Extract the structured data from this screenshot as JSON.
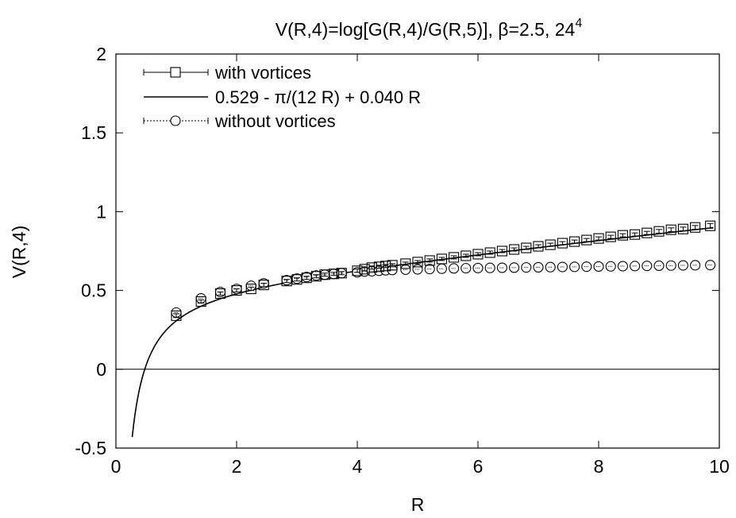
{
  "chart_data": {
    "type": "scatter",
    "title_main": "V(R,4)=log[G(R,4)/G(R,5)], β=2.5, 24",
    "title_sup": "4",
    "xlabel": "R",
    "ylabel": "V(R,4)",
    "xlim": [
      0,
      10
    ],
    "ylim": [
      -0.5,
      2
    ],
    "x_ticks": [
      0,
      2,
      4,
      6,
      8,
      10
    ],
    "x_tick_labels": [
      "0",
      "2",
      "4",
      "6",
      "8",
      "10"
    ],
    "y_ticks": [
      -0.5,
      0,
      0.5,
      1,
      1.5,
      2
    ],
    "y_tick_labels": [
      "-0.5",
      "0",
      "0.5",
      "1",
      "1.5",
      "2"
    ],
    "zero_line": true,
    "legend_position": "top-left",
    "fit": {
      "name": "0.529 - π/(12 R) + 0.040 R",
      "a": 0.529,
      "b": 0.2618,
      "c": 0.04,
      "x_range": [
        0.27,
        9.9
      ]
    },
    "series": [
      {
        "name": "with vortices",
        "marker": "square",
        "line": "solid",
        "x": [
          1.0,
          1.41,
          1.73,
          2.0,
          2.24,
          2.45,
          2.83,
          3.0,
          3.16,
          3.32,
          3.46,
          3.61,
          3.74,
          4.0,
          4.12,
          4.24,
          4.36,
          4.47,
          4.58,
          4.8,
          5.0,
          5.2,
          5.4,
          5.6,
          5.8,
          6.0,
          6.2,
          6.4,
          6.6,
          6.8,
          7.0,
          7.2,
          7.4,
          7.6,
          7.8,
          8.0,
          8.2,
          8.4,
          8.6,
          8.8,
          9.0,
          9.2,
          9.4,
          9.6,
          9.85
        ],
        "y": [
          0.34,
          0.43,
          0.48,
          0.5,
          0.51,
          0.535,
          0.56,
          0.57,
          0.58,
          0.59,
          0.6,
          0.605,
          0.61,
          0.625,
          0.635,
          0.645,
          0.65,
          0.655,
          0.66,
          0.67,
          0.68,
          0.69,
          0.7,
          0.71,
          0.72,
          0.73,
          0.74,
          0.75,
          0.76,
          0.77,
          0.78,
          0.79,
          0.8,
          0.81,
          0.82,
          0.83,
          0.84,
          0.85,
          0.855,
          0.865,
          0.875,
          0.885,
          0.89,
          0.9,
          0.91
        ],
        "err": [
          0.012,
          0.01,
          0.01,
          0.01,
          0.01,
          0.01,
          0.01,
          0.01,
          0.01,
          0.01,
          0.01,
          0.01,
          0.01,
          0.01,
          0.01,
          0.01,
          0.01,
          0.01,
          0.01,
          0.01,
          0.01,
          0.01,
          0.01,
          0.01,
          0.01,
          0.01,
          0.01,
          0.01,
          0.01,
          0.01,
          0.01,
          0.01,
          0.01,
          0.01,
          0.01,
          0.01,
          0.01,
          0.01,
          0.01,
          0.01,
          0.012,
          0.012,
          0.012,
          0.012,
          0.015
        ]
      },
      {
        "name": "without vortices",
        "marker": "circle",
        "line": "dotted",
        "x": [
          1.0,
          1.41,
          1.73,
          2.0,
          2.24,
          2.45,
          2.83,
          3.0,
          3.16,
          3.32,
          3.46,
          3.61,
          3.74,
          4.0,
          4.12,
          4.24,
          4.36,
          4.47,
          4.58,
          4.8,
          5.0,
          5.2,
          5.4,
          5.6,
          5.8,
          6.0,
          6.2,
          6.4,
          6.6,
          6.8,
          7.0,
          7.2,
          7.4,
          7.6,
          7.8,
          8.0,
          8.2,
          8.4,
          8.6,
          8.8,
          9.0,
          9.2,
          9.4,
          9.6,
          9.85
        ],
        "y": [
          0.36,
          0.45,
          0.49,
          0.51,
          0.53,
          0.545,
          0.565,
          0.575,
          0.585,
          0.595,
          0.6,
          0.605,
          0.61,
          0.615,
          0.62,
          0.622,
          0.625,
          0.628,
          0.63,
          0.632,
          0.634,
          0.636,
          0.638,
          0.64,
          0.641,
          0.642,
          0.643,
          0.644,
          0.645,
          0.646,
          0.647,
          0.648,
          0.649,
          0.65,
          0.651,
          0.652,
          0.653,
          0.654,
          0.655,
          0.656,
          0.657,
          0.658,
          0.659,
          0.66,
          0.661
        ],
        "err": [
          0.008,
          0.006,
          0.006,
          0.006,
          0.006,
          0.006,
          0.006,
          0.006,
          0.006,
          0.006,
          0.006,
          0.006,
          0.006,
          0.006,
          0.006,
          0.006,
          0.006,
          0.006,
          0.006,
          0.006,
          0.006,
          0.006,
          0.006,
          0.006,
          0.006,
          0.006,
          0.006,
          0.006,
          0.006,
          0.006,
          0.006,
          0.006,
          0.006,
          0.006,
          0.006,
          0.006,
          0.006,
          0.006,
          0.006,
          0.006,
          0.006,
          0.006,
          0.006,
          0.006,
          0.006
        ]
      }
    ]
  }
}
